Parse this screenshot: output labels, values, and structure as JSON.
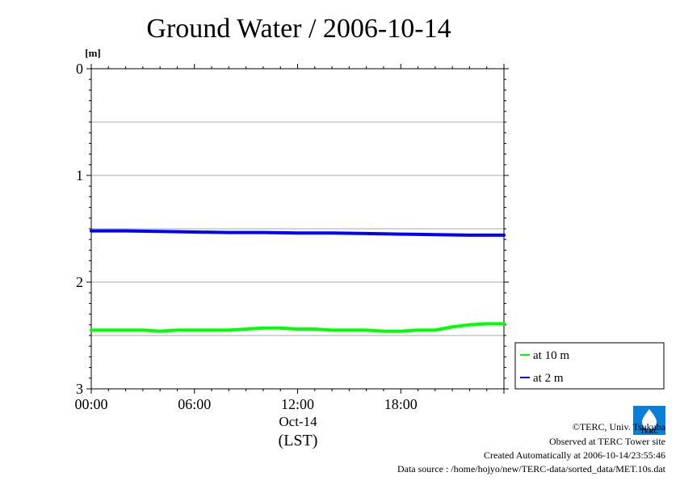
{
  "chart_data": {
    "type": "line",
    "title": "Ground Water / 2006-10-14",
    "ylabel": "[m]",
    "y_inverted": true,
    "ylim": [
      0,
      3
    ],
    "y_ticks": [
      "0",
      "1",
      "2",
      "3"
    ],
    "y_grid": [
      0.5,
      1,
      1.5,
      2,
      2.5
    ],
    "xlim": [
      0,
      24
    ],
    "x_ticks": [
      {
        "x": 0,
        "label": "00:00"
      },
      {
        "x": 6,
        "label": "06:00"
      },
      {
        "x": 12,
        "label": "12:00"
      },
      {
        "x": 18,
        "label": "18:00"
      }
    ],
    "x_date_label": "Oct-14",
    "x_unit_label": "(LST)",
    "grid": "horizontal",
    "legend_position": "right",
    "series": [
      {
        "name": "at 10 m",
        "color": "#00ff00",
        "x": [
          0,
          1,
          2,
          3,
          4,
          5,
          6,
          7,
          8,
          9,
          10,
          11,
          12,
          13,
          14,
          15,
          16,
          17,
          18,
          19,
          20,
          21,
          22,
          23,
          24
        ],
        "y": [
          2.45,
          2.45,
          2.45,
          2.45,
          2.46,
          2.45,
          2.45,
          2.45,
          2.45,
          2.44,
          2.43,
          2.43,
          2.44,
          2.44,
          2.45,
          2.45,
          2.45,
          2.46,
          2.46,
          2.45,
          2.45,
          2.42,
          2.4,
          2.39,
          2.39
        ]
      },
      {
        "name": "at 2 m",
        "color": "#0000ff",
        "x": [
          0,
          2,
          4,
          6,
          8,
          10,
          12,
          14,
          16,
          18,
          20,
          22,
          24
        ],
        "y": [
          1.52,
          1.52,
          1.525,
          1.53,
          1.535,
          1.535,
          1.54,
          1.54,
          1.545,
          1.55,
          1.555,
          1.56,
          1.56
        ]
      }
    ]
  },
  "credits": {
    "copyright": "©TERC, Univ. Tsukuba",
    "observed": "Observed at TERC Tower site",
    "created": "Created Automatically at 2006-10-14/23:55:46",
    "source": "Data source : /home/hojyo/new/TERC-data/sorted_data/MET.10s.dat"
  },
  "logo": {
    "text": "TERC",
    "color": "#0b7fd6"
  }
}
